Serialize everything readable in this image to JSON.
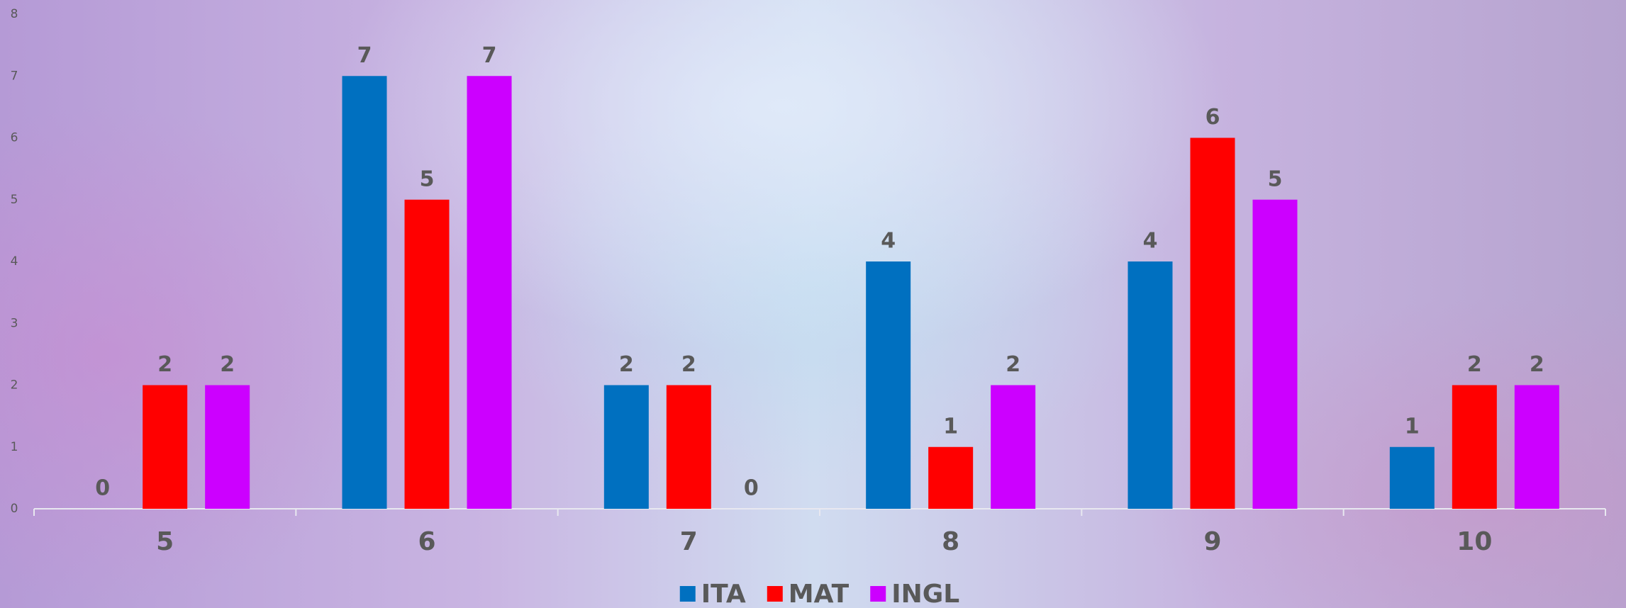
{
  "chart_data": {
    "type": "bar",
    "categories": [
      "5",
      "6",
      "7",
      "8",
      "9",
      "10"
    ],
    "series": [
      {
        "name": "ITA",
        "color": "#0070c0",
        "values": [
          0,
          7,
          2,
          4,
          4,
          1
        ]
      },
      {
        "name": "MAT",
        "color": "#ff0000",
        "values": [
          2,
          5,
          2,
          1,
          6,
          2
        ]
      },
      {
        "name": "INGL",
        "color": "#cc00ff",
        "values": [
          2,
          7,
          0,
          2,
          5,
          2
        ]
      }
    ],
    "ylim": [
      0,
      8
    ],
    "yticks": [
      0,
      1,
      2,
      3,
      4,
      5,
      6,
      7,
      8
    ],
    "grid": false,
    "legend": "bottom"
  }
}
